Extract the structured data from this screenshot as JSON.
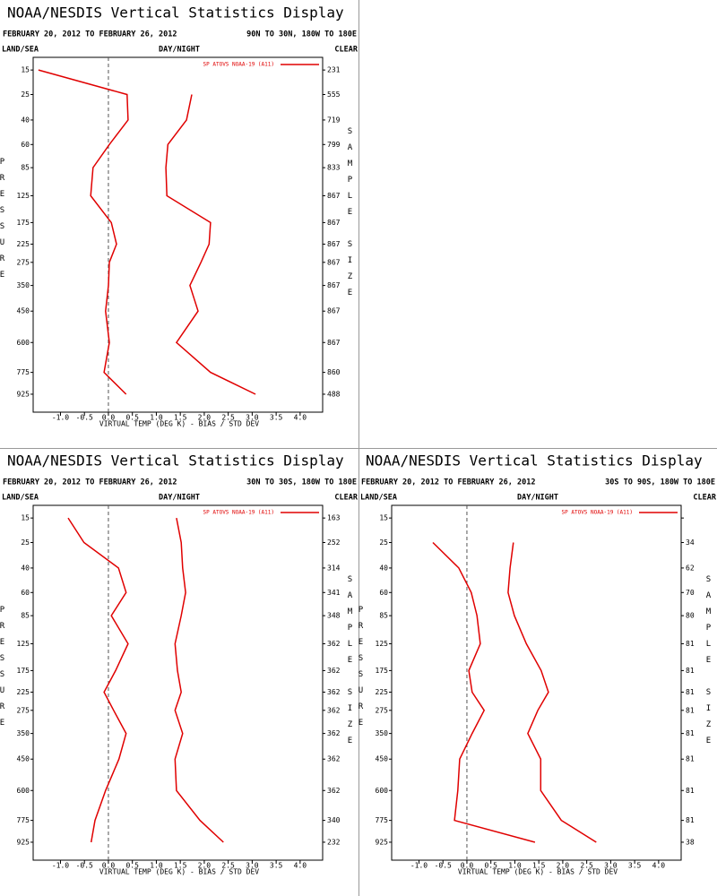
{
  "chart_data": [
    {
      "type": "line",
      "title": "NOAA/NESDIS Vertical Statistics Display",
      "subtitle": "FEBRUARY 20, 2012 TO FEBRUARY 26, 2012",
      "region": "90N TO 30N, 180W TO 180E",
      "land_sea": "LAND/SEA",
      "day_night": "DAY/NIGHT",
      "clear": "CLEAR",
      "y_label": "PRESSURE",
      "size_label": "SAMPLE SIZE",
      "x_label": "VIRTUAL TEMP (DEG K) - BIAS / STD DEV",
      "y": [
        15,
        25,
        40,
        60,
        85,
        125,
        175,
        225,
        275,
        350,
        450,
        600,
        775,
        925
      ],
      "yticks": [
        15,
        25,
        40,
        60,
        85,
        125,
        175,
        225,
        275,
        350,
        450,
        600,
        775,
        925
      ],
      "ylim": [
        11.2,
        1064
      ],
      "xlim": [
        -1.57,
        4.47
      ],
      "xticks": [
        {
          "value": -1,
          "label": "-1.0"
        },
        -0.5,
        {
          "value": 0,
          "label": "0.0"
        },
        0.5,
        {
          "value": 1,
          "label": "1.0"
        },
        1.5,
        {
          "value": 2,
          "label": "2.0"
        },
        2.5,
        {
          "value": 3,
          "label": "3.0"
        },
        3.5,
        {
          "value": 4,
          "label": "4.0"
        }
      ],
      "sample_size": [
        231,
        555,
        719,
        799,
        833,
        867,
        867,
        867,
        867,
        867,
        867,
        867,
        860,
        488
      ],
      "series": [
        {
          "name": "SP ATOVS NOAA-19 (A11)",
          "color": "#e00000",
          "bias": [
            -1.46,
            0.39,
            0.41,
            0.02,
            -0.32,
            -0.37,
            0.06,
            0.17,
            0.02,
            0.0,
            -0.06,
            0.02,
            -0.09,
            0.37
          ],
          "std_dev": [
            null,
            1.74,
            1.63,
            1.24,
            1.2,
            1.22,
            2.13,
            2.1,
            1.93,
            1.7,
            1.87,
            1.42,
            2.13,
            3.07
          ]
        }
      ]
    },
    {
      "type": "line",
      "title": "NOAA/NESDIS Vertical Statistics Display",
      "subtitle": "FEBRUARY 20, 2012 TO FEBRUARY 26, 2012",
      "region": "30N TO 30S, 180W TO 180E",
      "land_sea": "LAND/SEA",
      "day_night": "DAY/NIGHT",
      "clear": "CLEAR",
      "y_label": "PRESSURE",
      "size_label": "SAMPLE SIZE",
      "x_label": "VIRTUAL TEMP (DEG K) - BIAS / STD DEV",
      "y": [
        15,
        25,
        40,
        60,
        85,
        125,
        175,
        225,
        275,
        350,
        450,
        600,
        775,
        925
      ],
      "yticks": [
        15,
        25,
        40,
        60,
        85,
        125,
        175,
        225,
        275,
        350,
        450,
        600,
        775,
        925
      ],
      "ylim": [
        11.2,
        1064
      ],
      "xlim": [
        -1.57,
        4.47
      ],
      "xticks": [
        {
          "value": -1,
          "label": "-1.0"
        },
        -0.5,
        {
          "value": 0,
          "label": "0.0"
        },
        0.5,
        {
          "value": 1,
          "label": "1.0"
        },
        1.5,
        {
          "value": 2,
          "label": "2.0"
        },
        2.5,
        {
          "value": 3,
          "label": "3.0"
        },
        3.5,
        {
          "value": 4,
          "label": "4.0"
        }
      ],
      "sample_size": [
        163,
        252,
        314,
        341,
        348,
        362,
        362,
        362,
        362,
        362,
        362,
        362,
        340,
        232
      ],
      "series": [
        {
          "name": "SP ATOVS NOAA-19 (A11)",
          "color": "#e00000",
          "bias": [
            -0.84,
            -0.51,
            0.21,
            0.37,
            0.06,
            0.41,
            0.15,
            -0.09,
            0.11,
            0.37,
            0.22,
            -0.06,
            -0.28,
            -0.36
          ],
          "std_dev": [
            1.42,
            1.52,
            1.55,
            1.61,
            1.52,
            1.39,
            1.44,
            1.52,
            1.39,
            1.55,
            1.39,
            1.42,
            1.91,
            2.4
          ]
        }
      ]
    },
    {
      "type": "line",
      "title": "NOAA/NESDIS Vertical Statistics Display",
      "subtitle": "FEBRUARY 20, 2012 TO FEBRUARY 26, 2012",
      "region": "30S TO 90S, 180W TO 180E",
      "land_sea": "LAND/SEA",
      "day_night": "DAY/NIGHT",
      "clear": "CLEAR",
      "y_label": "PRESSURE",
      "size_label": "SAMPLE SIZE",
      "x_label": "VIRTUAL TEMP (DEG K) - BIAS / STD DEV",
      "y": [
        15,
        25,
        40,
        60,
        85,
        125,
        175,
        225,
        275,
        350,
        450,
        600,
        775,
        925
      ],
      "yticks": [
        15,
        25,
        40,
        60,
        85,
        125,
        175,
        225,
        275,
        350,
        450,
        600,
        775,
        925
      ],
      "ylim": [
        11.2,
        1064
      ],
      "xlim": [
        -1.57,
        4.47
      ],
      "xticks": [
        {
          "value": -1,
          "label": "-1.0"
        },
        -0.5,
        {
          "value": 0,
          "label": "0.0"
        },
        0.5,
        {
          "value": 1,
          "label": "1.0"
        },
        1.5,
        {
          "value": 2,
          "label": "2.0"
        },
        2.5,
        {
          "value": 3,
          "label": "3.0"
        },
        3.5,
        {
          "value": 4,
          "label": "4.0"
        }
      ],
      "sample_size": [
        null,
        34,
        62,
        70,
        80,
        81,
        81,
        81,
        81,
        81,
        81,
        81,
        81,
        38
      ],
      "series": [
        {
          "name": "SP ATOVS NOAA-19 (A11)",
          "color": "#e00000",
          "bias": [
            null,
            -0.71,
            -0.17,
            0.09,
            0.21,
            0.28,
            0.04,
            0.11,
            0.36,
            0.11,
            -0.15,
            -0.19,
            -0.26,
            1.42
          ],
          "std_dev": [
            null,
            0.97,
            0.9,
            0.86,
            0.99,
            1.24,
            1.55,
            1.7,
            1.48,
            1.27,
            1.54,
            1.54,
            1.97,
            2.7
          ]
        }
      ]
    }
  ]
}
